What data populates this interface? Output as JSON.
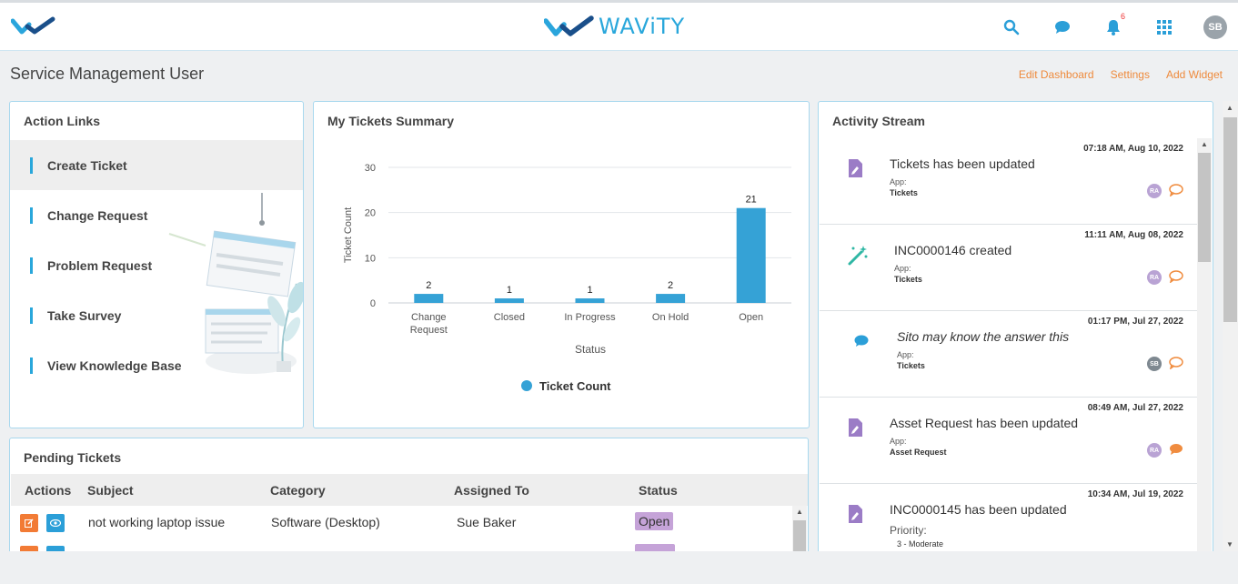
{
  "brand": {
    "name": "WAViTY"
  },
  "topbar": {
    "notification_count": "6",
    "avatar_initials": "SB"
  },
  "page": {
    "title": "Service Management User"
  },
  "header_links": {
    "edit": "Edit Dashboard",
    "settings": "Settings",
    "add_widget": "Add Widget"
  },
  "action_links": {
    "title": "Action Links",
    "items": [
      "Create Ticket",
      "Change Request",
      "Problem Request",
      "Take Survey",
      "View Knowledge Base"
    ]
  },
  "summary": {
    "title": "My Tickets Summary",
    "legend": "Ticket Count"
  },
  "chart_data": {
    "type": "bar",
    "title": "My Tickets Summary",
    "categories": [
      "Change Request",
      "Closed",
      "In Progress",
      "On Hold",
      "Open"
    ],
    "series": [
      {
        "name": "Ticket Count",
        "values": [
          2,
          1,
          1,
          2,
          21
        ],
        "color": "#35a2d6"
      }
    ],
    "xlabel": "Status",
    "ylabel": "Ticket Count",
    "ylim": [
      0,
      30
    ],
    "yticks": [
      0,
      10,
      20,
      30
    ],
    "grid": true,
    "legend": "bottom-center"
  },
  "activity": {
    "title": "Activity Stream",
    "app_label": "App:",
    "items": [
      {
        "time": "07:18 AM, Aug 10, 2022",
        "text": "Tickets has been updated",
        "app": "Tickets",
        "user": "RA",
        "icon": "edit-doc-icon"
      },
      {
        "time": "11:11 AM, Aug 08, 2022",
        "text": "INC0000146 created",
        "app": "Tickets",
        "user": "RA",
        "icon": "magic-wand-icon"
      },
      {
        "time": "01:17 PM, Jul 27, 2022",
        "text": "Sito may know the answer this",
        "app": "Tickets",
        "user": "SB",
        "icon": "chat-bubble-icon"
      },
      {
        "time": "08:49 AM, Jul 27, 2022",
        "text": "Asset Request has been updated",
        "app": "Asset Request",
        "user": "RA",
        "icon": "edit-doc-icon"
      },
      {
        "time": "10:34 AM, Jul 19, 2022",
        "text": "INC0000145 has been updated",
        "priority_label": "Priority:",
        "priority_value": "3 - Moderate",
        "icon": "edit-doc-icon"
      }
    ]
  },
  "pending": {
    "title": "Pending Tickets",
    "columns": [
      "Actions",
      "Subject",
      "Category",
      "Assigned To",
      "Status"
    ],
    "rows": [
      {
        "subject": "not working laptop issue",
        "category": "Software (Desktop)",
        "assigned": "Sue Baker",
        "status": "Open"
      }
    ]
  }
}
